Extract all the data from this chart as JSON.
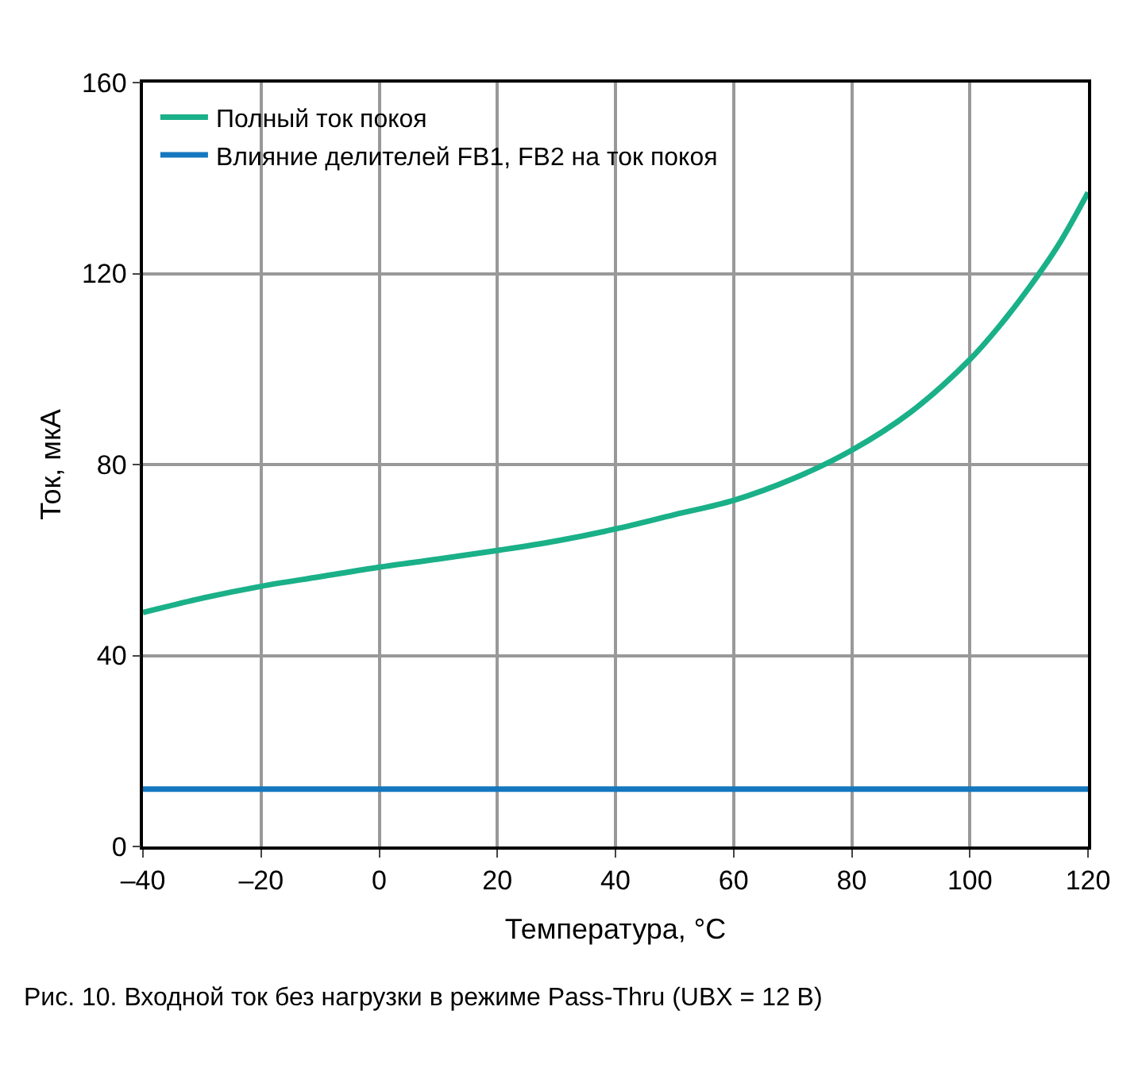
{
  "chart_data": {
    "type": "line",
    "xlabel": "Температура, °C",
    "ylabel": "Ток, мкА",
    "x": [
      -40,
      -30,
      -20,
      -10,
      0,
      10,
      20,
      30,
      40,
      50,
      60,
      70,
      80,
      90,
      100,
      105,
      110,
      115,
      120
    ],
    "series": [
      {
        "name": "Полный ток покоя",
        "color": "#1ab088",
        "values": [
          49,
          52,
          54.5,
          56.5,
          58.5,
          60.2,
          62,
          64,
          66.5,
          69.5,
          72.5,
          77,
          83,
          91,
          102,
          109,
          117,
          126,
          137
        ]
      },
      {
        "name": "Влияние делителей FB1, FB2 на ток покоя",
        "color": "#1577bf",
        "values": [
          12,
          12,
          12,
          12,
          12,
          12,
          12,
          12,
          12,
          12,
          12,
          12,
          12,
          12,
          12,
          12,
          12,
          12,
          12
        ]
      }
    ],
    "xlim": [
      -40,
      120
    ],
    "xticks": [
      {
        "value": -40,
        "label": "–40"
      },
      {
        "value": -20,
        "label": "–20"
      },
      0,
      20,
      40,
      60,
      80,
      100,
      120
    ],
    "ylim": [
      0,
      160
    ],
    "yticks": [
      0,
      40,
      80,
      120,
      160
    ],
    "grid": true,
    "legend": "top left",
    "marker": "none",
    "line_style": "solid",
    "annotations": [
      "Рис. 10. Входной ток без нагрузки в режиме Pass-Thru (UBX = 12 В)"
    ]
  }
}
